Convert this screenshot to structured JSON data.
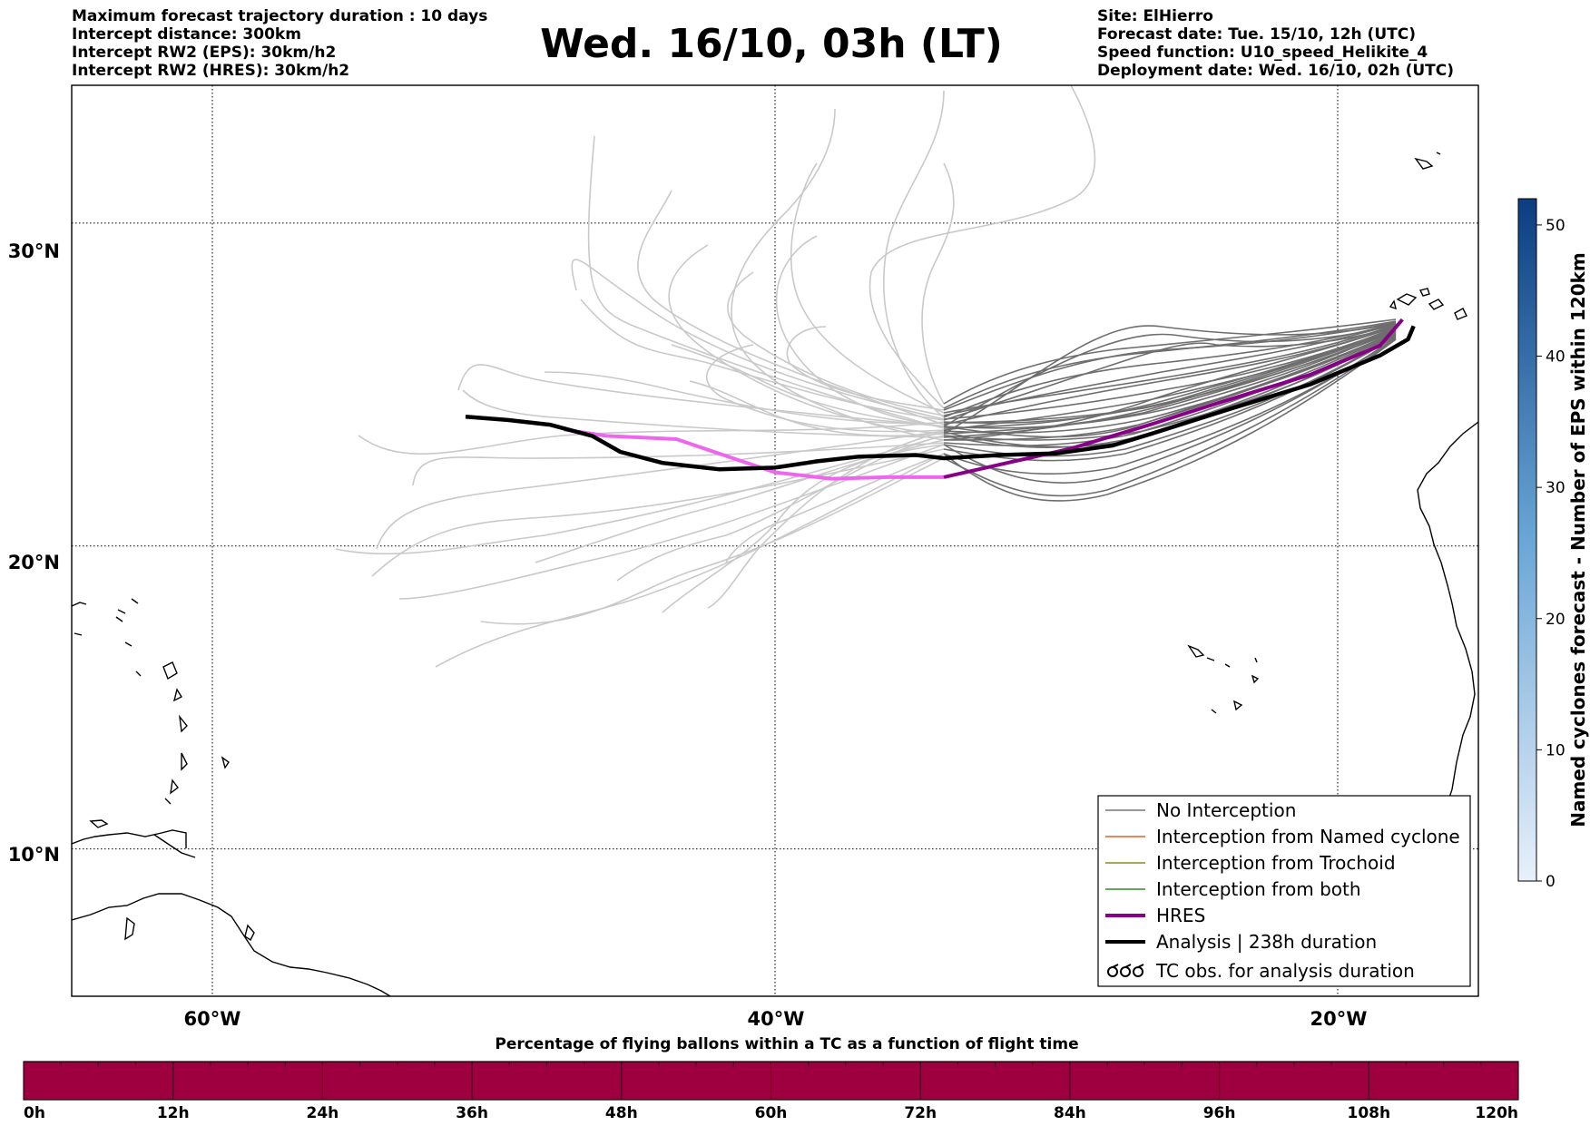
{
  "header": {
    "left_lines": [
      "Maximum forecast trajectory duration : 10 days",
      "Intercept distance: 300km",
      "Intercept RW2 (EPS):  30km/h2",
      "Intercept RW2 (HRES): 30km/h2"
    ],
    "title": "Wed. 16/10, 03h (LT)",
    "right_lines": [
      "Site: ElHierro",
      "Forecast date: Tue. 15/10, 12h (UTC)",
      "Speed function: U10_speed_Helikite_4",
      "Deployment date: Wed. 16/10, 02h (UTC)"
    ]
  },
  "map": {
    "lon_range": [
      -65,
      -15
    ],
    "lat_range": [
      5,
      34
    ],
    "lat_labels": [
      "30°N",
      "20°N",
      "10°N"
    ],
    "lat_values": [
      30,
      20,
      10
    ],
    "lon_labels": [
      "60°W",
      "40°W",
      "20°W"
    ],
    "lon_values": [
      -60,
      -40,
      -20
    ],
    "grid": "dotted",
    "colors": {
      "ensemble_far": "#c9c9c9",
      "ensemble_near": "#6e6e6e",
      "hres_far": "#ee66ee",
      "hres_near": "#880088",
      "analysis": "#000000"
    }
  },
  "legend": {
    "position": "lower-right",
    "items": [
      {
        "label": "No Interception",
        "color": "#777777",
        "style": "thin"
      },
      {
        "label": "Interception from Named cyclone",
        "color": "#e0602a",
        "style": "thin"
      },
      {
        "label": "Interception from Trochoid",
        "color": "#8a8a20",
        "style": "thin"
      },
      {
        "label": "Interception from both",
        "color": "#2e8b2e",
        "style": "thin"
      },
      {
        "label": "HRES",
        "color": "#880088",
        "style": "thick"
      },
      {
        "label": "Analysis | 238h duration",
        "color": "#000000",
        "style": "thick"
      },
      {
        "label": "TC obs. for analysis duration",
        "color": "#000000",
        "style": "symbol"
      }
    ]
  },
  "colorbar": {
    "label": "Named cyclones forecast - Number of EPS within 120km",
    "ticks": [
      "0",
      "10",
      "20",
      "30",
      "40",
      "50"
    ],
    "tick_values": [
      0,
      10,
      20,
      30,
      40,
      50
    ],
    "max": 52,
    "color_low": "#e8f0fa",
    "color_high": "#0b3d80"
  },
  "percent_bar": {
    "title": "Percentage of flying ballons within a TC as a function of flight time",
    "ticks": [
      "0h",
      "12h",
      "24h",
      "36h",
      "48h",
      "60h",
      "72h",
      "84h",
      "96h",
      "108h",
      "120h"
    ],
    "color": "#9e003f"
  },
  "chart_data": {
    "type": "line",
    "series": [
      {
        "name": "Analysis | 238h duration",
        "points": [
          [
            -17.3,
            26.9
          ],
          [
            -17.5,
            26.5
          ],
          [
            -18.5,
            26.0
          ],
          [
            -21,
            25.1
          ],
          [
            -24,
            24.3
          ],
          [
            -26.5,
            23.6
          ],
          [
            -28,
            23.2
          ],
          [
            -30,
            22.95
          ],
          [
            -32,
            22.9
          ],
          [
            -34,
            22.8
          ],
          [
            -35,
            22.9
          ],
          [
            -37,
            22.85
          ],
          [
            -38.5,
            22.7
          ],
          [
            -40,
            22.5
          ],
          [
            -42,
            22.45
          ],
          [
            -44,
            22.65
          ],
          [
            -45.5,
            23.0
          ],
          [
            -46.5,
            23.5
          ],
          [
            -48,
            23.85
          ],
          [
            -49.5,
            24.0
          ],
          [
            -51,
            24.1
          ]
        ]
      },
      {
        "name": "HRES",
        "points": [
          [
            -17.7,
            27.1
          ],
          [
            -18.5,
            26.3
          ],
          [
            -21,
            25.4
          ],
          [
            -24,
            24.6
          ],
          [
            -26.5,
            23.9
          ],
          [
            -28,
            23.5
          ],
          [
            -29.5,
            23.1
          ],
          [
            -31,
            22.8
          ],
          [
            -32.5,
            22.5
          ],
          [
            -34,
            22.2
          ],
          [
            -36,
            22.2
          ],
          [
            -38,
            22.15
          ],
          [
            -40,
            22.35
          ],
          [
            -41.5,
            22.8
          ],
          [
            -43.5,
            23.4
          ],
          [
            -46,
            23.5
          ],
          [
            -47.5,
            23.7
          ]
        ]
      }
    ]
  }
}
